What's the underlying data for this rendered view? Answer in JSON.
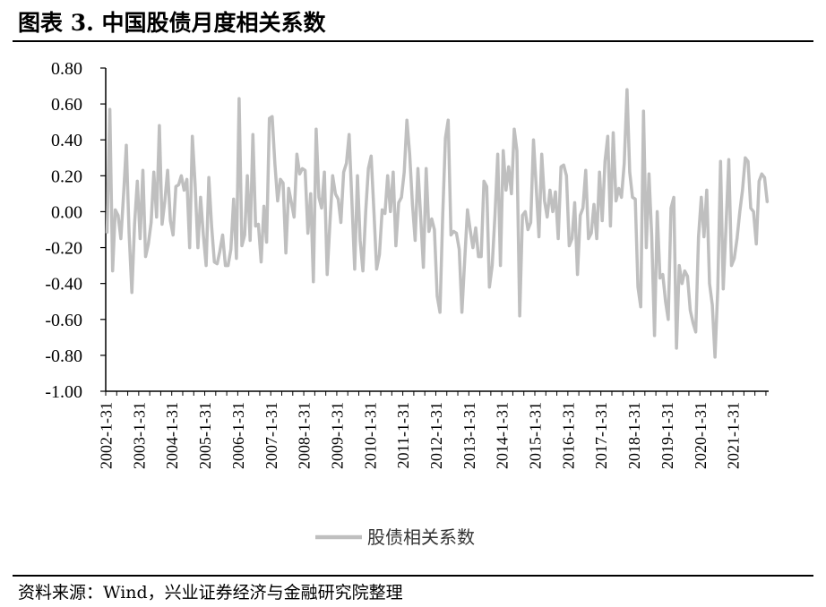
{
  "page": {
    "title": "图表 3. 中国股债月度相关系数",
    "source": "资料来源：Wind，兴业证券经济与金融研究院整理"
  },
  "chart_data": {
    "type": "line",
    "title": "",
    "xlabel": "",
    "ylabel": "",
    "ylim": [
      -1.0,
      0.8
    ],
    "yticks": [
      "0.80",
      "0.60",
      "0.40",
      "0.20",
      "0.00",
      "-0.20",
      "-0.40",
      "-0.60",
      "-0.80",
      "-1.00"
    ],
    "xticks": [
      "2002-1-31",
      "2003-1-31",
      "2004-1-31",
      "2005-1-31",
      "2006-1-31",
      "2007-1-31",
      "2008-1-31",
      "2009-1-31",
      "2010-1-31",
      "2011-1-31",
      "2012-1-31",
      "2013-1-31",
      "2014-1-31",
      "2015-1-31",
      "2016-1-31",
      "2017-1-31",
      "2018-1-31",
      "2019-1-31",
      "2020-1-31",
      "2021-1-31"
    ],
    "x_start": "2002-01-31",
    "frequency": "monthly",
    "grid": false,
    "legend": "bottom-center",
    "series": [
      {
        "name": "股债相关系数",
        "color": "#BFBFBF",
        "values": [
          -0.12,
          0.57,
          -0.33,
          0.01,
          -0.02,
          -0.15,
          0.1,
          0.37,
          -0.12,
          -0.45,
          -0.07,
          0.17,
          -0.15,
          0.23,
          -0.25,
          -0.18,
          -0.06,
          0.22,
          -0.03,
          0.48,
          -0.07,
          0.06,
          0.23,
          -0.05,
          -0.13,
          0.14,
          0.15,
          0.2,
          0.12,
          0.18,
          -0.2,
          0.42,
          0.15,
          -0.2,
          0.08,
          -0.13,
          -0.3,
          0.19,
          -0.08,
          -0.28,
          -0.29,
          -0.22,
          -0.13,
          -0.3,
          -0.3,
          -0.21,
          0.07,
          -0.26,
          0.63,
          -0.19,
          -0.13,
          0.2,
          -0.16,
          0.43,
          -0.08,
          -0.07,
          -0.28,
          0.03,
          -0.17,
          0.52,
          0.53,
          0.27,
          0.06,
          0.18,
          0.16,
          -0.23,
          0.13,
          0.05,
          -0.03,
          0.32,
          0.21,
          0.24,
          0.23,
          -0.12,
          0.1,
          -0.39,
          0.46,
          0.08,
          0.02,
          0.22,
          -0.35,
          -0.07,
          0.2,
          0.1,
          0.07,
          -0.06,
          0.22,
          0.27,
          0.43,
          0.06,
          -0.32,
          0.2,
          -0.16,
          -0.33,
          0.0,
          0.24,
          0.31,
          0.0,
          -0.32,
          -0.24,
          0.01,
          -0.01,
          0.2,
          0.0,
          0.22,
          -0.19,
          0.05,
          0.08,
          0.22,
          0.51,
          0.32,
          0.04,
          -0.16,
          0.24,
          -0.03,
          -0.31,
          0.24,
          -0.11,
          -0.04,
          -0.1,
          -0.47,
          -0.56,
          -0.03,
          0.41,
          0.51,
          -0.13,
          -0.11,
          -0.12,
          -0.21,
          -0.56,
          -0.27,
          0.01,
          -0.1,
          -0.2,
          -0.09,
          -0.25,
          -0.25,
          0.17,
          0.14,
          -0.42,
          -0.3,
          -0.02,
          0.32,
          -0.3,
          0.34,
          0.12,
          0.25,
          0.1,
          0.46,
          0.34,
          -0.58,
          -0.02,
          0.0,
          -0.1,
          -0.06,
          0.4,
          0.14,
          -0.14,
          0.32,
          0.06,
          -0.03,
          0.12,
          0.0,
          0.11,
          -0.15,
          0.25,
          0.26,
          0.2,
          -0.19,
          -0.15,
          0.05,
          -0.35,
          -0.02,
          0.02,
          0.23,
          -0.15,
          -0.12,
          0.04,
          -0.15,
          0.22,
          -0.05,
          0.28,
          0.42,
          -0.08,
          0.44,
          0.06,
          0.13,
          0.08,
          0.27,
          0.68,
          0.22,
          0.08,
          0.07,
          -0.42,
          -0.53,
          0.56,
          -0.2,
          0.21,
          -0.14,
          -0.69,
          0.0,
          -0.37,
          -0.35,
          -0.5,
          -0.6,
          0.02,
          0.08,
          -0.76,
          -0.3,
          -0.4,
          -0.33,
          -0.36,
          -0.55,
          -0.62,
          -0.67,
          -0.14,
          0.08,
          -0.14,
          0.12,
          -0.4,
          -0.52,
          -0.81,
          -0.43,
          0.28,
          -0.43,
          -0.08,
          0.29,
          -0.3,
          -0.26,
          -0.15,
          0.0,
          0.12,
          0.3,
          0.28,
          0.02,
          0.0,
          -0.18,
          0.17,
          0.21,
          0.19,
          0.05
        ]
      }
    ]
  }
}
